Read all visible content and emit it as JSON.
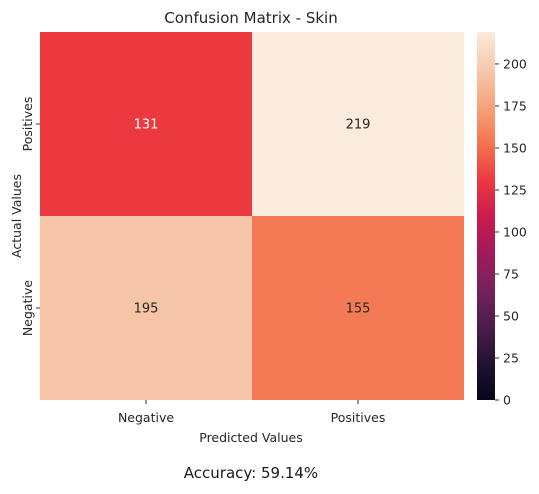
{
  "chart_data": {
    "type": "heatmap",
    "title": "Confusion Matrix - Skin",
    "xlabel": "Predicted Values",
    "ylabel": "Actual Values",
    "x_categories": [
      "Negative",
      "Positives"
    ],
    "y_categories": [
      "Positives",
      "Negative"
    ],
    "values": [
      [
        131,
        219
      ],
      [
        195,
        155
      ]
    ],
    "colorbar": {
      "colormap": "rocket",
      "range": [
        0,
        219
      ],
      "ticks": [
        0,
        25,
        50,
        75,
        100,
        125,
        150,
        175,
        200
      ]
    }
  },
  "caption": {
    "text": "Accuracy: 59.14%"
  }
}
